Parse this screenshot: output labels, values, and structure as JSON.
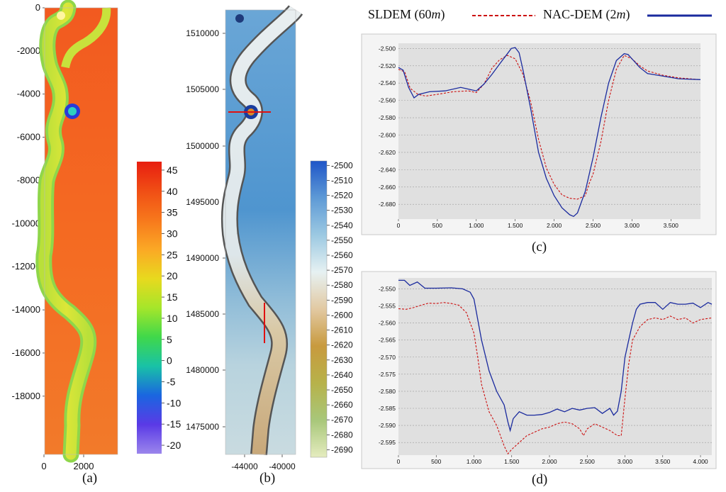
{
  "legend": {
    "sldem_label": "SLDEM (60",
    "sldem_unit": "m",
    "nac_label": "NAC-DEM (2",
    "nac_unit": "m",
    "sldem_color": "#cc1010",
    "nac_color": "#1a2a9e"
  },
  "captions": {
    "a": "(a)",
    "b": "(b)",
    "c": "(c)",
    "d": "(d)"
  },
  "chart_data": [
    {
      "id": "a",
      "type": "heatmap",
      "x_ticks": [
        "0",
        "2000"
      ],
      "y_ticks": [
        "0",
        "-2000",
        "-4000",
        "-6000",
        "-8000",
        "-10000",
        "-12000",
        "-14000",
        "-16000",
        "-18000"
      ],
      "colorbar_ticks": [
        "45",
        "40",
        "35",
        "30",
        "25",
        "20",
        "15",
        "10",
        "5",
        "0",
        "-5",
        "-10",
        "-15",
        "-20"
      ],
      "colorbar_range": [
        -22,
        47
      ],
      "colormap": [
        "#e81e10",
        "#f04e15",
        "#f7781c",
        "#fba825",
        "#e8d91e",
        "#a6e62a",
        "#40d84a",
        "#19c2a6",
        "#1a66e0",
        "#5a3ae6",
        "#9b86ec"
      ],
      "background_value": 35,
      "channel_value": 19
    },
    {
      "id": "b",
      "type": "heatmap",
      "x_ticks": [
        "-44000",
        "-40000"
      ],
      "y_ticks": [
        "1510000",
        "1505000",
        "1500000",
        "1495000",
        "1490000",
        "1485000",
        "1480000",
        "1475000"
      ],
      "colorbar_ticks": [
        "-2500",
        "-2510",
        "-2520",
        "-2530",
        "-2540",
        "-2550",
        "-2560",
        "-2570",
        "-2580",
        "-2590",
        "-2600",
        "-2610",
        "-2620",
        "-2630",
        "-2640",
        "-2650",
        "-2660",
        "-2670",
        "-2680",
        "-2690"
      ],
      "colorbar_range": [
        -2695,
        -2497
      ],
      "colormap": [
        "#1f55c8",
        "#5e9ad6",
        "#9cc9e2",
        "#e6f1f2",
        "#e2c9a2",
        "#c89a3e",
        "#b7b24a",
        "#a8c77a",
        "#e5ecbf"
      ]
    },
    {
      "id": "c",
      "type": "line",
      "x_ticks": [
        "0",
        "500",
        "1.000",
        "1.500",
        "2.000",
        "2.500",
        "3.000",
        "3.500"
      ],
      "y_ticks": [
        "-2.500",
        "-2.520",
        "-2.540",
        "-2.560",
        "-2.580",
        "-2.600",
        "-2.620",
        "-2.640",
        "-2.660",
        "-2.680"
      ],
      "xlim": [
        0,
        3880
      ],
      "ylim": [
        -2.697,
        -2.494
      ],
      "series": [
        {
          "key": "sldem",
          "x": [
            0,
            80,
            150,
            250,
            350,
            500,
            700,
            900,
            1000,
            1100,
            1200,
            1300,
            1400,
            1500,
            1600,
            1700,
            1800,
            1900,
            2000,
            2100,
            2200,
            2300,
            2400,
            2450,
            2500,
            2600,
            2700,
            2800,
            2900,
            3000,
            3100,
            3200,
            3400,
            3600,
            3880
          ],
          "y": [
            -2.524,
            -2.527,
            -2.546,
            -2.553,
            -2.555,
            -2.553,
            -2.55,
            -2.549,
            -2.551,
            -2.541,
            -2.523,
            -2.513,
            -2.508,
            -2.512,
            -2.53,
            -2.562,
            -2.605,
            -2.638,
            -2.657,
            -2.669,
            -2.673,
            -2.674,
            -2.67,
            -2.656,
            -2.645,
            -2.608,
            -2.56,
            -2.524,
            -2.508,
            -2.512,
            -2.52,
            -2.526,
            -2.531,
            -2.534,
            -2.536
          ]
        },
        {
          "key": "nac",
          "x": [
            0,
            60,
            130,
            200,
            260,
            400,
            600,
            800,
            900,
            1000,
            1100,
            1200,
            1300,
            1400,
            1450,
            1500,
            1550,
            1600,
            1700,
            1800,
            1900,
            2000,
            2100,
            2200,
            2250,
            2300,
            2400,
            2500,
            2600,
            2700,
            2800,
            2900,
            2950,
            3000,
            3100,
            3200,
            3400,
            3600,
            3880
          ],
          "y": [
            -2.522,
            -2.525,
            -2.545,
            -2.557,
            -2.553,
            -2.55,
            -2.549,
            -2.545,
            -2.547,
            -2.549,
            -2.541,
            -2.53,
            -2.518,
            -2.506,
            -2.5,
            -2.499,
            -2.505,
            -2.525,
            -2.57,
            -2.62,
            -2.65,
            -2.67,
            -2.684,
            -2.692,
            -2.694,
            -2.69,
            -2.665,
            -2.626,
            -2.58,
            -2.54,
            -2.514,
            -2.506,
            -2.507,
            -2.512,
            -2.522,
            -2.529,
            -2.532,
            -2.535,
            -2.536
          ]
        }
      ]
    },
    {
      "id": "d",
      "type": "line",
      "x_ticks": [
        "0",
        "500",
        "1.000",
        "1.500",
        "2.000",
        "2.500",
        "3.000",
        "3.500",
        "4.000"
      ],
      "y_ticks": [
        "-2.550",
        "-2.555",
        "-2.560",
        "-2.565",
        "-2.570",
        "-2.575",
        "-2.580",
        "-2.585",
        "-2.590",
        "-2.595"
      ],
      "xlim": [
        0,
        4150
      ],
      "ylim": [
        -2.5987,
        -2.5468
      ],
      "series": [
        {
          "key": "sldem",
          "x": [
            0,
            100,
            200,
            300,
            400,
            500,
            600,
            700,
            800,
            900,
            1000,
            1050,
            1100,
            1150,
            1200,
            1300,
            1400,
            1450,
            1500,
            1600,
            1700,
            1800,
            1900,
            2000,
            2100,
            2200,
            2300,
            2400,
            2450,
            2500,
            2600,
            2700,
            2800,
            2900,
            2950,
            3000,
            3050,
            3100,
            3200,
            3300,
            3400,
            3500,
            3600,
            3700,
            3800,
            3900,
            4000,
            4150
          ],
          "y": [
            -2.5558,
            -2.556,
            -2.5555,
            -2.5548,
            -2.5542,
            -2.5543,
            -2.554,
            -2.5543,
            -2.5548,
            -2.557,
            -2.563,
            -2.57,
            -2.578,
            -2.582,
            -2.586,
            -2.59,
            -2.596,
            -2.5983,
            -2.597,
            -2.595,
            -2.593,
            -2.592,
            -2.591,
            -2.5905,
            -2.5895,
            -2.589,
            -2.5895,
            -2.591,
            -2.593,
            -2.591,
            -2.5895,
            -2.5905,
            -2.5915,
            -2.593,
            -2.593,
            -2.582,
            -2.572,
            -2.565,
            -2.561,
            -2.559,
            -2.5585,
            -2.559,
            -2.558,
            -2.559,
            -2.5585,
            -2.56,
            -2.559,
            -2.5585
          ]
        },
        {
          "key": "nac",
          "x": [
            0,
            80,
            150,
            250,
            350,
            500,
            700,
            850,
            950,
            1000,
            1100,
            1200,
            1300,
            1400,
            1450,
            1480,
            1520,
            1600,
            1700,
            1800,
            1900,
            2000,
            2100,
            2200,
            2300,
            2400,
            2500,
            2600,
            2700,
            2800,
            2850,
            2900,
            2950,
            3000,
            3050,
            3100,
            3150,
            3200,
            3300,
            3400,
            3500,
            3600,
            3700,
            3800,
            3900,
            4000,
            4100,
            4150
          ],
          "y": [
            -2.5475,
            -2.5475,
            -2.549,
            -2.548,
            -2.5498,
            -2.5498,
            -2.5497,
            -2.55,
            -2.551,
            -2.553,
            -2.565,
            -2.574,
            -2.58,
            -2.584,
            -2.589,
            -2.5915,
            -2.588,
            -2.586,
            -2.587,
            -2.587,
            -2.5868,
            -2.5862,
            -2.5852,
            -2.586,
            -2.585,
            -2.5855,
            -2.585,
            -2.5848,
            -2.5865,
            -2.585,
            -2.587,
            -2.5858,
            -2.58,
            -2.57,
            -2.565,
            -2.56,
            -2.556,
            -2.5545,
            -2.554,
            -2.554,
            -2.556,
            -2.554,
            -2.5545,
            -2.5545,
            -2.5542,
            -2.5555,
            -2.554,
            -2.5545
          ]
        }
      ]
    }
  ]
}
